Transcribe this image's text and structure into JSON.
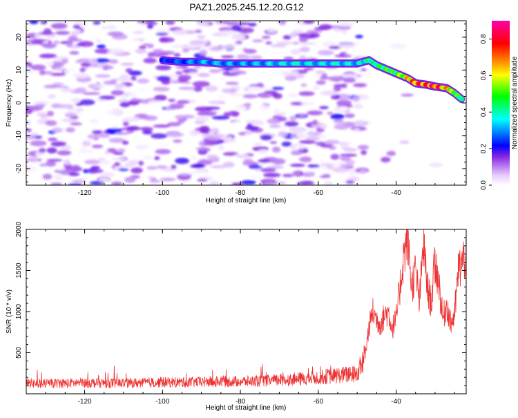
{
  "figure": {
    "title": "PAZ1.2025.245.12.20.G12"
  },
  "chart_data": [
    {
      "type": "heatmap",
      "panel": "spectrogram",
      "xlabel": "Height of straight line (km)",
      "ylabel": "Frequency (Hz)",
      "xlim": [
        -135,
        -22
      ],
      "ylim": [
        -25,
        25
      ],
      "xticks": [
        -120,
        -100,
        -80,
        -60,
        -40
      ],
      "yticks": [
        -20,
        -10,
        0,
        10,
        20
      ],
      "colorbar": {
        "label": "Normalized spectral amplitude",
        "ticks": [
          0.0,
          0.2,
          0.4,
          0.6,
          0.8
        ],
        "range": [
          0.0,
          0.9
        ],
        "colormap": [
          "#ffffff",
          "#e6ccff",
          "#8a2be2",
          "#0000ff",
          "#00ffff",
          "#00ff00",
          "#ffff00",
          "#ff8000",
          "#ff0000",
          "#ff00aa"
        ]
      },
      "ridge": {
        "name": "",
        "x": [
          -100,
          -95,
          -90,
          -85,
          -80,
          -75,
          -70,
          -65,
          -60,
          -55,
          -50,
          -47,
          -45,
          -42,
          -40,
          -37,
          -35,
          -32,
          -30,
          -27,
          -25,
          -23
        ],
        "y": [
          13,
          12.5,
          12.5,
          12,
          12,
          12,
          12,
          12,
          12,
          12,
          12,
          13,
          11.5,
          10,
          9,
          7.5,
          6,
          5.5,
          5,
          4.5,
          3,
          1
        ],
        "amplitude": [
          0.25,
          0.3,
          0.35,
          0.35,
          0.35,
          0.35,
          0.4,
          0.4,
          0.4,
          0.4,
          0.4,
          0.45,
          0.5,
          0.55,
          0.55,
          0.7,
          0.85,
          0.85,
          0.9,
          0.75,
          0.6,
          0.5
        ]
      }
    },
    {
      "type": "line",
      "panel": "snr",
      "xlabel": "Height of straight line (km)",
      "ylabel": "SNR (10 * v/v)",
      "xlim": [
        -135,
        -22
      ],
      "ylim": [
        0,
        2000
      ],
      "xticks": [
        -120,
        -100,
        -80,
        -60,
        -40
      ],
      "yticks": [
        500,
        1000,
        1500,
        2000
      ],
      "color": "#ee3030",
      "series": [
        {
          "name": "",
          "x": [
            -135,
            -130,
            -125,
            -120,
            -115,
            -110,
            -105,
            -100,
            -95,
            -90,
            -85,
            -80,
            -75,
            -70,
            -65,
            -60,
            -55,
            -50,
            -48,
            -47,
            -46,
            -45,
            -44,
            -43,
            -42,
            -41,
            -40,
            -39,
            -38,
            -37,
            -36,
            -35,
            -34,
            -33,
            -32,
            -31,
            -30,
            -29,
            -28,
            -27,
            -26,
            -25,
            -24,
            -23,
            -22
          ],
          "y": [
            130,
            125,
            130,
            135,
            130,
            130,
            135,
            140,
            140,
            145,
            150,
            150,
            155,
            165,
            180,
            200,
            225,
            240,
            450,
            800,
            1000,
            900,
            850,
            950,
            1000,
            800,
            900,
            1300,
            1700,
            1900,
            1300,
            1500,
            1100,
            1850,
            1300,
            1100,
            1600,
            1350,
            900,
            1100,
            850,
            950,
            1500,
            1600,
            1700
          ]
        }
      ]
    }
  ]
}
